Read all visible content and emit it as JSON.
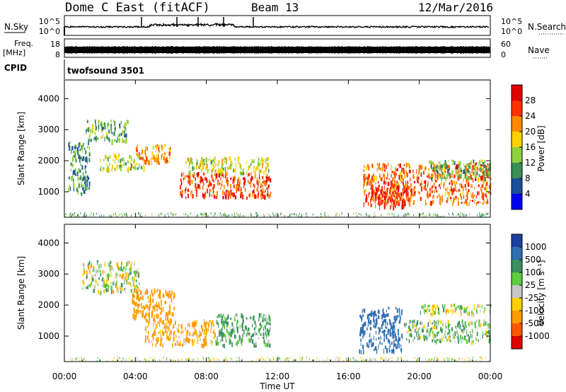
{
  "header": {
    "station": "Dome C East (fitACF)",
    "beam": "Beam 13",
    "date": "12/Mar/2016"
  },
  "noise_panel": {
    "left_label": "N.Sky",
    "left_ticks": [
      "10^5",
      "10^0"
    ],
    "right_ticks": [
      "10^5",
      "10^0"
    ],
    "right_label": "N.Search"
  },
  "freq_panel": {
    "left_label_1": "Freq.",
    "left_label_2": "[MHz]",
    "left_ticks": [
      "18",
      "8"
    ],
    "right_ticks": [
      "60",
      "0"
    ],
    "right_label": "Nave"
  },
  "cpid_panel": {
    "label": "CPID",
    "program": "twofsound 3501"
  },
  "axes": {
    "x_ticks": [
      "00:00",
      "04:00",
      "08:00",
      "12:00",
      "16:00",
      "20:00",
      "00:00"
    ],
    "x_label": "Time UT",
    "y_label": "Slant Range [km]",
    "y_ticks": [
      "1000",
      "2000",
      "3000",
      "4000"
    ]
  },
  "power_colorbar": {
    "label": "Power [dB]",
    "ticks": [
      "28",
      "24",
      "20",
      "16",
      "12",
      "8",
      "4"
    ],
    "colors": [
      "#e00000",
      "#ff3000",
      "#ff8a00",
      "#ffd000",
      "#8ed040",
      "#3a8e58",
      "#1c4e9a",
      "#0000f0"
    ]
  },
  "velocity_colorbar": {
    "label": "Velocity [m s⁻¹]",
    "ticks": [
      "1000",
      "500",
      "100",
      "25",
      "-25",
      "-100",
      "-500",
      "-1000"
    ],
    "colors": [
      "#1e3ea0",
      "#2f6fb0",
      "#3a9060",
      "#5ccc40",
      "#c8c8c8",
      "#ffd000",
      "#ff9a00",
      "#ff5800",
      "#e00000"
    ]
  },
  "chart_data": [
    {
      "type": "heatmap",
      "title": "Power",
      "xlabel": "Time UT",
      "ylabel": "Slant Range [km]",
      "xlim": [
        0,
        24
      ],
      "ylim": [
        180,
        4600
      ],
      "regions": [
        {
          "t": [
            0.2,
            1.4
          ],
          "r": [
            900,
            2600
          ],
          "value": 10
        },
        {
          "t": [
            1.2,
            3.6
          ],
          "r": [
            2600,
            3300
          ],
          "value": 12
        },
        {
          "t": [
            2.0,
            4.5
          ],
          "r": [
            1700,
            2200
          ],
          "value": 14
        },
        {
          "t": [
            4.0,
            6.0
          ],
          "r": [
            1900,
            2500
          ],
          "value": 22
        },
        {
          "t": [
            6.5,
            11.6
          ],
          "r": [
            800,
            1600
          ],
          "value": 26
        },
        {
          "t": [
            6.8,
            11.5
          ],
          "r": [
            1600,
            2100
          ],
          "value": 16
        },
        {
          "t": [
            16.8,
            24.0
          ],
          "r": [
            600,
            1900
          ],
          "value": 24
        },
        {
          "t": [
            17.2,
            19.5
          ],
          "r": [
            500,
            1200
          ],
          "value": 28
        },
        {
          "t": [
            20.5,
            24.0
          ],
          "r": [
            1400,
            2000
          ],
          "value": 12
        }
      ]
    },
    {
      "type": "heatmap",
      "title": "Velocity",
      "xlabel": "Time UT",
      "ylabel": "Slant Range [km]",
      "xlim": [
        0,
        24
      ],
      "ylim": [
        180,
        4600
      ],
      "regions": [
        {
          "t": [
            1.0,
            4.2
          ],
          "r": [
            2400,
            3400
          ],
          "value": 0
        },
        {
          "t": [
            3.8,
            6.2
          ],
          "r": [
            1500,
            2500
          ],
          "value": -300
        },
        {
          "t": [
            4.5,
            8.5
          ],
          "r": [
            700,
            1500
          ],
          "value": -150
        },
        {
          "t": [
            8.5,
            11.6
          ],
          "r": [
            700,
            1700
          ],
          "value": 150
        },
        {
          "t": [
            16.6,
            19.0
          ],
          "r": [
            500,
            1900
          ],
          "value": 800
        },
        {
          "t": [
            19.0,
            24.0
          ],
          "r": [
            800,
            1500
          ],
          "value": 100
        },
        {
          "t": [
            20.0,
            24.0
          ],
          "r": [
            1700,
            2000
          ],
          "value": 0
        }
      ]
    }
  ]
}
